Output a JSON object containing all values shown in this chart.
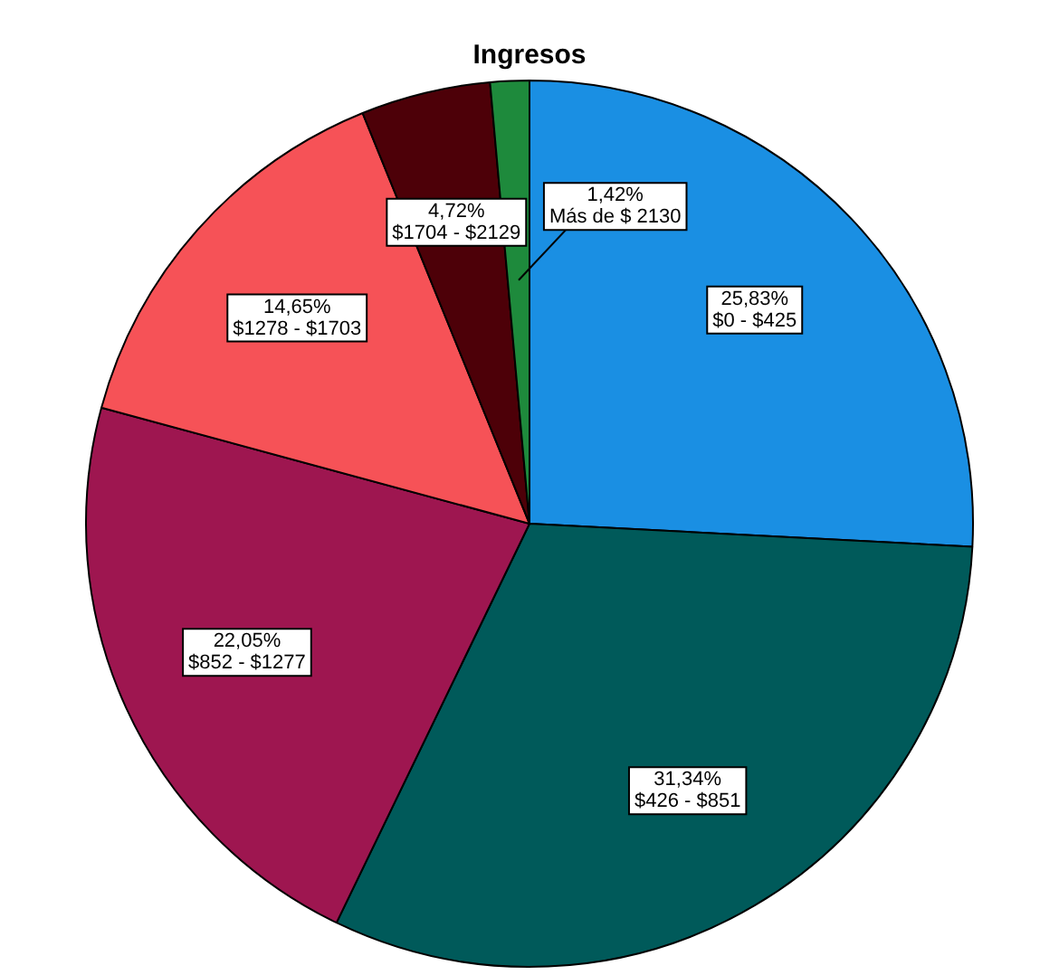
{
  "chart_data": {
    "type": "pie",
    "title": "Ingresos",
    "categories": [
      "$0 - $425",
      "$426 - $851",
      "$852 - $1277",
      "$1278 - $1703",
      "$1704 - $2129",
      "Más de $ 2130"
    ],
    "values": [
      25.83,
      31.34,
      22.05,
      14.65,
      4.72,
      1.42
    ],
    "value_labels": [
      "25,83%",
      "31,34%",
      "22,05%",
      "14,65%",
      "4,72%",
      "1,42%"
    ],
    "colors": [
      "#1a8fe3",
      "#005a5a",
      "#9e1650",
      "#f65257",
      "#4d0008",
      "#1e8a3c"
    ],
    "legend": false
  }
}
